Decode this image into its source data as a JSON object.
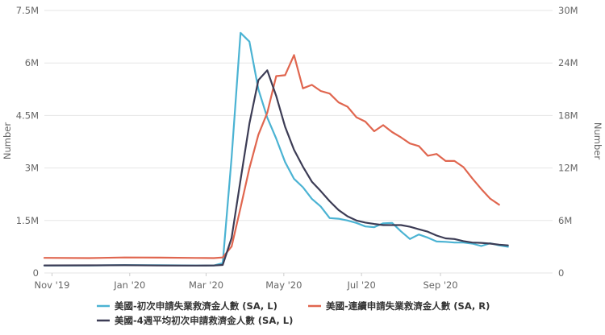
{
  "chart_data": {
    "type": "line",
    "ylabel_left": "Number",
    "ylabel_right": "Number",
    "y_left_range": [
      0,
      7500000
    ],
    "y_right_range": [
      0,
      30000000
    ],
    "y_left_ticks": [
      "0",
      "1.5M",
      "3M",
      "4.5M",
      "6M",
      "7.5M"
    ],
    "y_right_ticks": [
      "0",
      "6M",
      "12M",
      "18M",
      "24M",
      "30M"
    ],
    "x_range": [
      "2019-10-26",
      "2020-11-28"
    ],
    "x_ticks": [
      {
        "date": "2019-11-01",
        "label": "Nov '19"
      },
      {
        "date": "2020-01-01",
        "label": "Jan '20"
      },
      {
        "date": "2020-03-01",
        "label": "Mar '20"
      },
      {
        "date": "2020-05-01",
        "label": "May '20"
      },
      {
        "date": "2020-07-01",
        "label": "Jul '20"
      },
      {
        "date": "2020-09-01",
        "label": "Sep '20"
      }
    ],
    "grid": true,
    "legend_position": "bottom",
    "series": [
      {
        "name": "美國-初次申請失業救濟金人數 (SA, L)",
        "axis": "left",
        "color": "#4bb3d3",
        "points": [
          [
            "2019-10-26",
            215000
          ],
          [
            "2019-11-30",
            215000
          ],
          [
            "2019-12-28",
            225000
          ],
          [
            "2020-01-25",
            220000
          ],
          [
            "2020-02-22",
            215000
          ],
          [
            "2020-03-07",
            215000
          ],
          [
            "2020-03-14",
            280000
          ],
          [
            "2020-03-21",
            3300000
          ],
          [
            "2020-03-28",
            6860000
          ],
          [
            "2020-04-04",
            6610000
          ],
          [
            "2020-04-11",
            5250000
          ],
          [
            "2020-04-18",
            4440000
          ],
          [
            "2020-04-25",
            3840000
          ],
          [
            "2020-05-02",
            3170000
          ],
          [
            "2020-05-09",
            2690000
          ],
          [
            "2020-05-16",
            2450000
          ],
          [
            "2020-05-23",
            2120000
          ],
          [
            "2020-05-30",
            1900000
          ],
          [
            "2020-06-06",
            1570000
          ],
          [
            "2020-06-13",
            1550000
          ],
          [
            "2020-06-20",
            1500000
          ],
          [
            "2020-06-27",
            1430000
          ],
          [
            "2020-07-04",
            1330000
          ],
          [
            "2020-07-11",
            1310000
          ],
          [
            "2020-07-18",
            1420000
          ],
          [
            "2020-07-25",
            1430000
          ],
          [
            "2020-08-01",
            1190000
          ],
          [
            "2020-08-08",
            970000
          ],
          [
            "2020-08-15",
            1100000
          ],
          [
            "2020-08-22",
            1010000
          ],
          [
            "2020-08-29",
            900000
          ],
          [
            "2020-09-05",
            890000
          ],
          [
            "2020-09-12",
            870000
          ],
          [
            "2020-09-19",
            870000
          ],
          [
            "2020-09-26",
            840000
          ],
          [
            "2020-10-03",
            770000
          ],
          [
            "2020-10-10",
            850000
          ],
          [
            "2020-10-17",
            790000
          ],
          [
            "2020-10-24",
            750000
          ]
        ]
      },
      {
        "name": "美國-連續申請失業救濟金人數 (SA, R)",
        "axis": "right",
        "color": "#e0664f",
        "points": [
          [
            "2019-10-26",
            1730000
          ],
          [
            "2019-11-30",
            1700000
          ],
          [
            "2019-12-28",
            1780000
          ],
          [
            "2020-01-25",
            1760000
          ],
          [
            "2020-02-22",
            1720000
          ],
          [
            "2020-03-07",
            1700000
          ],
          [
            "2020-03-14",
            1780000
          ],
          [
            "2020-03-21",
            3030000
          ],
          [
            "2020-03-28",
            7450000
          ],
          [
            "2020-04-04",
            11980000
          ],
          [
            "2020-04-11",
            15800000
          ],
          [
            "2020-04-18",
            18300000
          ],
          [
            "2020-04-25",
            22500000
          ],
          [
            "2020-05-02",
            22600000
          ],
          [
            "2020-05-09",
            24900000
          ],
          [
            "2020-05-16",
            21100000
          ],
          [
            "2020-05-23",
            21500000
          ],
          [
            "2020-05-30",
            20800000
          ],
          [
            "2020-06-06",
            20500000
          ],
          [
            "2020-06-13",
            19500000
          ],
          [
            "2020-06-20",
            19000000
          ],
          [
            "2020-06-27",
            17800000
          ],
          [
            "2020-07-04",
            17300000
          ],
          [
            "2020-07-11",
            16200000
          ],
          [
            "2020-07-18",
            16900000
          ],
          [
            "2020-07-25",
            16100000
          ],
          [
            "2020-08-01",
            15500000
          ],
          [
            "2020-08-08",
            14800000
          ],
          [
            "2020-08-15",
            14500000
          ],
          [
            "2020-08-22",
            13400000
          ],
          [
            "2020-08-29",
            13600000
          ],
          [
            "2020-09-05",
            12800000
          ],
          [
            "2020-09-12",
            12800000
          ],
          [
            "2020-09-19",
            12100000
          ],
          [
            "2020-09-26",
            10800000
          ],
          [
            "2020-10-03",
            9600000
          ],
          [
            "2020-10-10",
            8500000
          ],
          [
            "2020-10-17",
            7800000
          ]
        ]
      },
      {
        "name": "美國-4週平均初次申請救濟金人數 (SA, L)",
        "axis": "left",
        "color": "#3c3c55",
        "points": [
          [
            "2019-10-26",
            216000
          ],
          [
            "2019-11-30",
            218000
          ],
          [
            "2019-12-28",
            223000
          ],
          [
            "2020-01-25",
            213000
          ],
          [
            "2020-02-22",
            211000
          ],
          [
            "2020-03-07",
            213000
          ],
          [
            "2020-03-14",
            230000
          ],
          [
            "2020-03-21",
            1000000
          ],
          [
            "2020-03-28",
            2660000
          ],
          [
            "2020-04-04",
            4270000
          ],
          [
            "2020-04-11",
            5510000
          ],
          [
            "2020-04-18",
            5790000
          ],
          [
            "2020-04-25",
            5060000
          ],
          [
            "2020-05-02",
            4180000
          ],
          [
            "2020-05-09",
            3520000
          ],
          [
            "2020-05-16",
            3040000
          ],
          [
            "2020-05-23",
            2610000
          ],
          [
            "2020-05-30",
            2340000
          ],
          [
            "2020-06-06",
            2050000
          ],
          [
            "2020-06-13",
            1800000
          ],
          [
            "2020-06-20",
            1620000
          ],
          [
            "2020-06-27",
            1500000
          ],
          [
            "2020-07-04",
            1440000
          ],
          [
            "2020-07-11",
            1400000
          ],
          [
            "2020-07-18",
            1370000
          ],
          [
            "2020-07-25",
            1370000
          ],
          [
            "2020-08-01",
            1370000
          ],
          [
            "2020-08-08",
            1320000
          ],
          [
            "2020-08-15",
            1250000
          ],
          [
            "2020-08-22",
            1180000
          ],
          [
            "2020-08-29",
            1070000
          ],
          [
            "2020-09-05",
            990000
          ],
          [
            "2020-09-12",
            970000
          ],
          [
            "2020-09-19",
            910000
          ],
          [
            "2020-09-26",
            870000
          ],
          [
            "2020-10-03",
            860000
          ],
          [
            "2020-10-10",
            840000
          ],
          [
            "2020-10-17",
            810000
          ],
          [
            "2020-10-24",
            790000
          ]
        ]
      }
    ]
  }
}
